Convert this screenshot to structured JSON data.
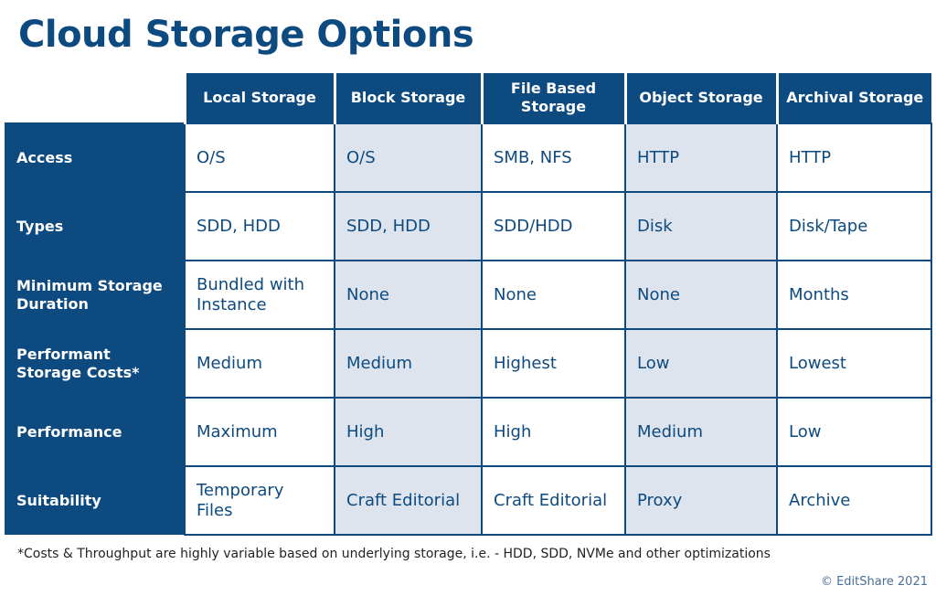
{
  "title": "Cloud Storage Options",
  "columns": [
    "Local Storage",
    "Block Storage",
    "File Based Storage",
    "Object Storage",
    "Archival Storage"
  ],
  "rows": [
    {
      "label": "Access",
      "cells": [
        "O/S",
        "O/S",
        "SMB, NFS",
        "HTTP",
        "HTTP"
      ]
    },
    {
      "label": "Types",
      "cells": [
        "SDD, HDD",
        "SDD, HDD",
        "SDD/HDD",
        "Disk",
        "Disk/Tape"
      ]
    },
    {
      "label": "Minimum Storage Duration",
      "cells": [
        "Bundled with Instance",
        "None",
        "None",
        "None",
        "Months"
      ]
    },
    {
      "label": "Performant Storage Costs*",
      "cells": [
        "Medium",
        "Medium",
        "Highest",
        "Low",
        "Lowest"
      ]
    },
    {
      "label": "Performance",
      "cells": [
        "Maximum",
        "High",
        "High",
        "Medium",
        "Low"
      ]
    },
    {
      "label": "Suitability",
      "cells": [
        "Temporary Files",
        "Craft Editorial",
        "Craft Editorial",
        "Proxy",
        "Archive"
      ]
    }
  ],
  "footnote": "*Costs & Throughput are highly variable based on underlying storage, i.e. - HDD, SDD, NVMe and other optimizations",
  "copyright": "© EditShare 2021",
  "colors": {
    "primary": "#0d4a80",
    "shade": "#dde4ed"
  }
}
